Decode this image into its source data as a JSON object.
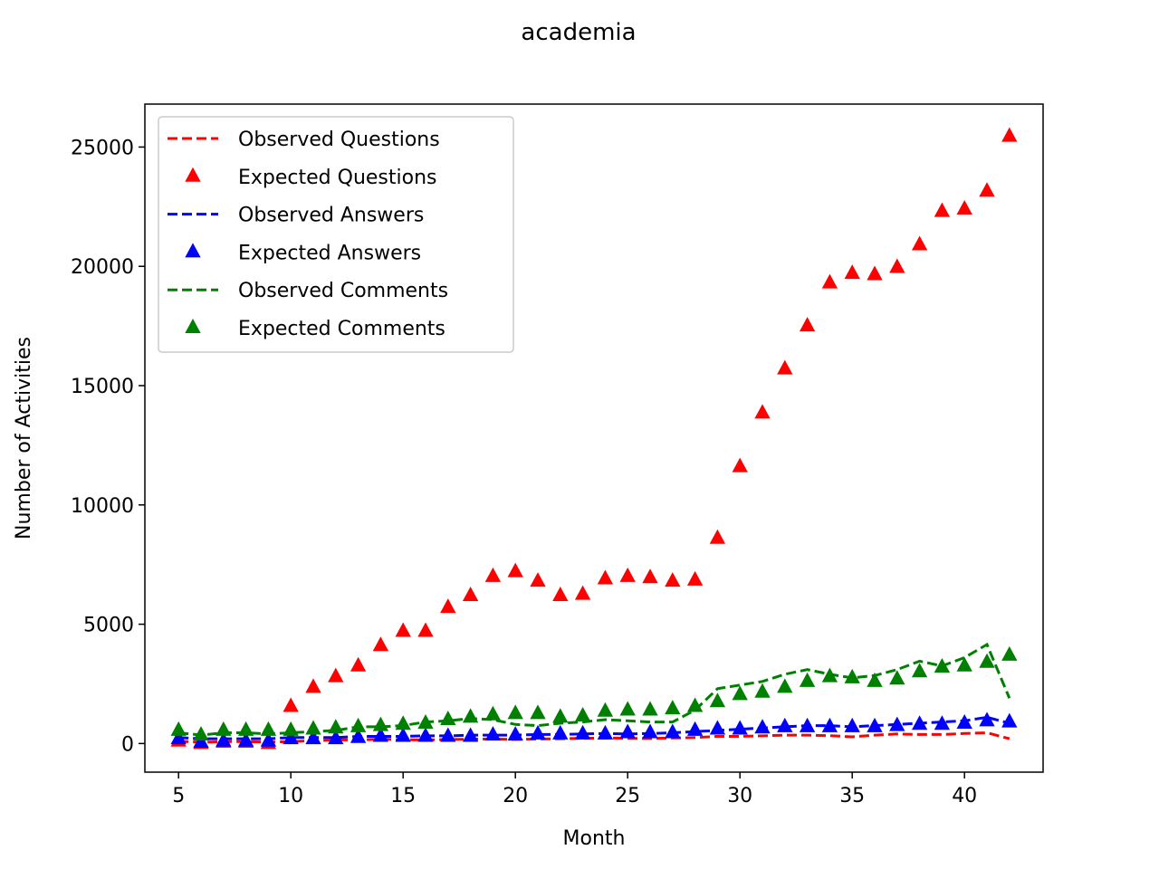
{
  "chart_data": {
    "type": "line",
    "title": "academia",
    "xlabel": "Month",
    "ylabel": "Number of Activities",
    "xlim": [
      3.5,
      43.5
    ],
    "ylim": [
      -1200,
      26800
    ],
    "xticks": [
      5,
      10,
      15,
      20,
      25,
      30,
      35,
      40
    ],
    "xtick_labels": [
      "5",
      "10",
      "15",
      "20",
      "25",
      "30",
      "35",
      "40"
    ],
    "yticks": [
      0,
      5000,
      10000,
      15000,
      20000,
      25000
    ],
    "ytick_labels": [
      "0",
      "5000",
      "10000",
      "15000",
      "20000",
      "25000"
    ],
    "grid": false,
    "legend_position": "upper-left",
    "x": [
      5,
      6,
      7,
      8,
      9,
      10,
      11,
      12,
      13,
      14,
      15,
      16,
      17,
      18,
      19,
      20,
      21,
      22,
      23,
      24,
      25,
      26,
      27,
      28,
      29,
      30,
      31,
      32,
      33,
      34,
      35,
      36,
      37,
      38,
      39,
      40,
      41,
      42
    ],
    "series": [
      {
        "name": "Observed Questions",
        "style": "dashed-line",
        "color": "#ff0000",
        "values": [
          100,
          50,
          80,
          80,
          60,
          80,
          120,
          150,
          150,
          180,
          160,
          150,
          170,
          180,
          190,
          170,
          190,
          200,
          220,
          230,
          220,
          210,
          230,
          250,
          300,
          300,
          320,
          350,
          350,
          330,
          280,
          350,
          400,
          380,
          380,
          420,
          450,
          200
        ]
      },
      {
        "name": "Expected Questions",
        "style": "triangle-marker",
        "color": "#ff0000",
        "values": [
          100,
          0,
          50,
          50,
          0,
          1550,
          2350,
          2800,
          3250,
          4100,
          4700,
          4700,
          5700,
          6200,
          7000,
          7200,
          6800,
          6200,
          6250,
          6900,
          7000,
          6950,
          6800,
          6850,
          8600,
          11600,
          13850,
          15700,
          17500,
          19300,
          19700,
          19650,
          19950,
          20900,
          22300,
          22400,
          23150,
          25450
        ]
      },
      {
        "name": "Observed Answers",
        "style": "dashed-line",
        "color": "#0000ff",
        "values": [
          250,
          200,
          200,
          200,
          200,
          250,
          250,
          250,
          300,
          300,
          300,
          320,
          320,
          350,
          350,
          350,
          380,
          380,
          400,
          420,
          400,
          420,
          450,
          500,
          550,
          600,
          650,
          700,
          750,
          750,
          700,
          750,
          800,
          850,
          900,
          950,
          1100,
          850
        ]
      },
      {
        "name": "Expected Answers",
        "style": "triangle-marker",
        "color": "#0000ff",
        "values": [
          200,
          50,
          100,
          100,
          100,
          200,
          200,
          200,
          250,
          300,
          300,
          300,
          300,
          300,
          350,
          350,
          400,
          400,
          400,
          400,
          450,
          450,
          450,
          550,
          600,
          600,
          650,
          700,
          700,
          700,
          700,
          700,
          750,
          800,
          800,
          850,
          950,
          900
        ]
      },
      {
        "name": "Observed Comments",
        "style": "dashed-line",
        "color": "#008000",
        "values": [
          450,
          350,
          450,
          450,
          400,
          450,
          500,
          550,
          700,
          700,
          750,
          900,
          950,
          1050,
          1000,
          800,
          750,
          850,
          900,
          1000,
          950,
          900,
          900,
          1400,
          2300,
          2450,
          2600,
          2900,
          3100,
          2900,
          2750,
          2850,
          3100,
          3450,
          3250,
          3600,
          4150,
          1900
        ]
      },
      {
        "name": "Expected Comments",
        "style": "triangle-marker",
        "color": "#008000",
        "values": [
          550,
          350,
          550,
          550,
          550,
          550,
          600,
          650,
          700,
          750,
          800,
          850,
          1000,
          1100,
          1200,
          1250,
          1250,
          1100,
          1150,
          1350,
          1400,
          1400,
          1450,
          1550,
          1750,
          2050,
          2150,
          2350,
          2600,
          2800,
          2750,
          2600,
          2700,
          3000,
          3200,
          3250,
          3400,
          3700
        ]
      }
    ]
  }
}
